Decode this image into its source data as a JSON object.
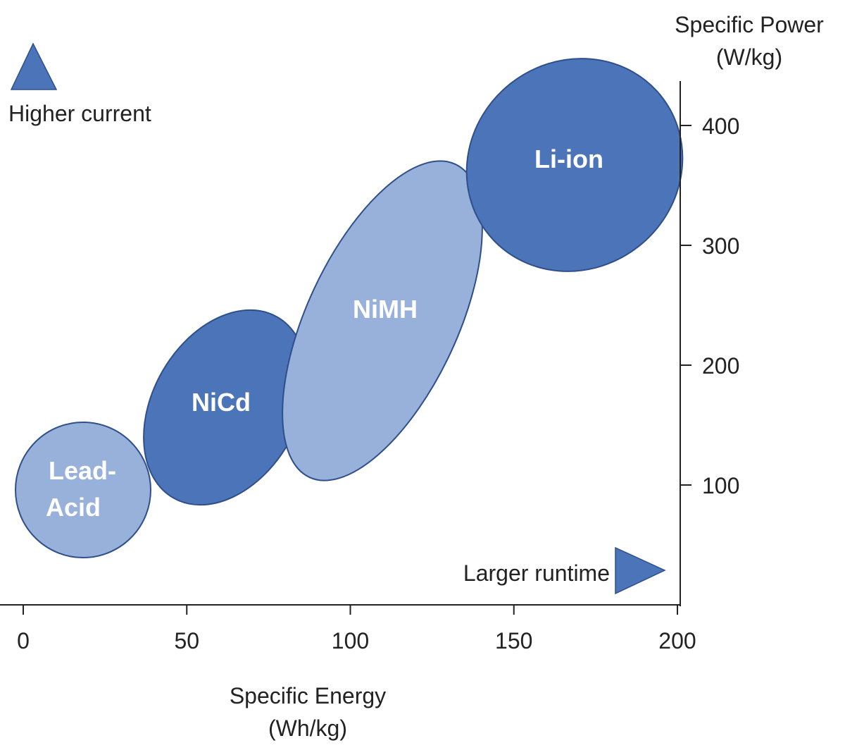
{
  "chart_data": {
    "type": "scatter",
    "title": "",
    "xlabel": [
      "Specific Energy",
      "(Wh/kg)"
    ],
    "ylabel": [
      "Specific Power",
      "(W/kg)"
    ],
    "xlim": [
      0,
      200
    ],
    "ylim": [
      0,
      400
    ],
    "xticks": [
      0,
      50,
      100,
      150,
      200
    ],
    "yticks": [
      100,
      200,
      300,
      400
    ],
    "grid": false,
    "annotations": {
      "up_arrow_label": "Higher current",
      "right_arrow_label": "Larger runtime"
    },
    "series": [
      {
        "name": "Lead-Acid",
        "label_lines": [
          "Lead-",
          "Acid"
        ],
        "x_range": [
          0,
          40
        ],
        "y_range": [
          25,
          135
        ],
        "tone": "light"
      },
      {
        "name": "NiCd",
        "label_lines": [
          "NiCd"
        ],
        "x_range": [
          40,
          90
        ],
        "y_range": [
          75,
          240
        ],
        "tone": "dark"
      },
      {
        "name": "NiMH",
        "label_lines": [
          "NiMH"
        ],
        "x_range": [
          85,
          150
        ],
        "y_range": [
          90,
          370
        ],
        "tone": "light"
      },
      {
        "name": "Li-ion",
        "label_lines": [
          "Li-ion"
        ],
        "x_range": [
          150,
          200
        ],
        "y_range": [
          260,
          420
        ],
        "tone": "dark"
      }
    ],
    "colors": {
      "dark": "#4b74b9",
      "light": "#98b1da",
      "outline": "#2f4f8c",
      "axis": "#222222"
    }
  }
}
